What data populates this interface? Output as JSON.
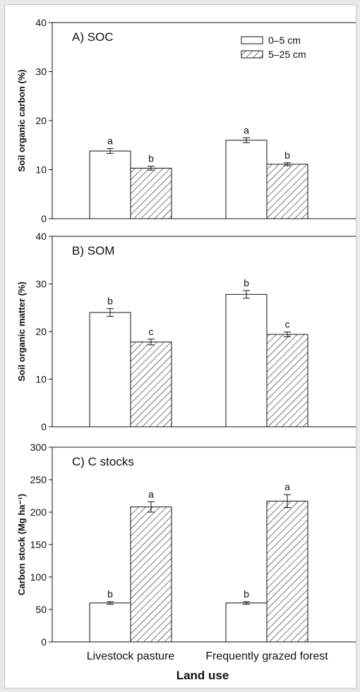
{
  "chart_data": [
    {
      "type": "bar",
      "title": "A) SOC",
      "ylabel": "Soil organic carbon (%)",
      "ylim": [
        0,
        40
      ],
      "yticks": [
        0,
        10,
        20,
        30,
        40
      ],
      "categories": [
        "Livestock pasture",
        "Frequently grazed forest"
      ],
      "series": [
        {
          "name": "0–5 cm",
          "values": [
            13.8,
            16.0
          ],
          "errors": [
            0.5,
            0.5
          ],
          "letters": [
            "a",
            "a"
          ]
        },
        {
          "name": "5–25 cm",
          "values": [
            10.3,
            11.1
          ],
          "errors": [
            0.4,
            0.3
          ],
          "letters": [
            "b",
            "b"
          ]
        }
      ],
      "legend": "top-right"
    },
    {
      "type": "bar",
      "title": "B) SOM",
      "ylabel": "Soil organic matter (%)",
      "ylim": [
        0,
        40
      ],
      "yticks": [
        0,
        10,
        20,
        30,
        40
      ],
      "categories": [
        "Livestock pasture",
        "Frequently grazed forest"
      ],
      "series": [
        {
          "name": "0–5 cm",
          "values": [
            24.0,
            27.8
          ],
          "errors": [
            0.8,
            0.8
          ],
          "letters": [
            "b",
            "b"
          ]
        },
        {
          "name": "5–25 cm",
          "values": [
            17.8,
            19.4
          ],
          "errors": [
            0.6,
            0.5
          ],
          "letters": [
            "c",
            "c"
          ]
        }
      ]
    },
    {
      "type": "bar",
      "title": "C) C stocks",
      "ylabel": "Carbon stock (Mg ha⁻¹)",
      "ylim": [
        0,
        300
      ],
      "yticks": [
        0,
        50,
        100,
        150,
        200,
        250,
        300
      ],
      "categories": [
        "Livestock pasture",
        "Frequently grazed forest"
      ],
      "series": [
        {
          "name": "0–5 cm",
          "values": [
            60,
            60
          ],
          "errors": [
            2,
            2
          ],
          "letters": [
            "b",
            "b"
          ]
        },
        {
          "name": "5–25 cm",
          "values": [
            208,
            217
          ],
          "errors": [
            8,
            10
          ],
          "letters": [
            "a",
            "a"
          ]
        }
      ]
    }
  ],
  "xlabel": "Land use",
  "colors": {
    "bar_open": "#ffffff",
    "hatch": "#222222",
    "axis": "#111111"
  }
}
